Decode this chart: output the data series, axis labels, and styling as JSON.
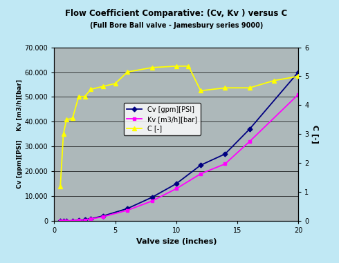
{
  "title": "Flow Coefficient Comparative: (Cv, Kv ) versus C",
  "subtitle": "(Full Bore Ball valve - Jamesbury series 9000)",
  "xlabel": "Valve size (inches)",
  "ylabel_left": "Cv [gpm][PSI]    Kv [m3/h][bar]",
  "ylabel_right": "C [-]",
  "background_color": "#c0e8f4",
  "plot_bg_color": "#adb8ba",
  "x_cv": [
    0.5,
    0.75,
    1.0,
    1.5,
    2.0,
    2.5,
    3.0,
    4.0,
    6.0,
    8.0,
    10.0,
    12.0,
    14.0,
    16.0,
    20.0
  ],
  "y_cv": [
    0,
    0,
    0,
    100,
    300,
    500,
    900,
    2000,
    5000,
    9500,
    15000,
    22500,
    27000,
    37000,
    60000
  ],
  "x_kv": [
    0.5,
    0.75,
    1.0,
    1.5,
    2.0,
    2.5,
    3.0,
    4.0,
    6.0,
    8.0,
    10.0,
    12.0,
    14.0,
    16.0,
    20.0
  ],
  "y_kv": [
    0,
    0,
    0,
    80,
    250,
    400,
    750,
    1700,
    4300,
    8000,
    13000,
    19000,
    23000,
    32000,
    51000
  ],
  "x_c": [
    0.5,
    0.75,
    1.0,
    1.5,
    2.0,
    2.5,
    3.0,
    4.0,
    5.0,
    6.0,
    8.0,
    10.0,
    11.0,
    12.0,
    14.0,
    16.0,
    18.0,
    20.0
  ],
  "y_c": [
    1.2,
    3.0,
    3.5,
    3.55,
    4.3,
    4.3,
    4.55,
    4.65,
    4.75,
    5.15,
    5.3,
    5.35,
    5.35,
    4.5,
    4.6,
    4.6,
    4.85,
    5.0
  ],
  "ylim_left": [
    0,
    70000
  ],
  "ylim_right": [
    0,
    6
  ],
  "xlim": [
    0,
    20
  ],
  "cv_color": "#000080",
  "kv_color": "#ff00ff",
  "c_color": "#ffff00"
}
